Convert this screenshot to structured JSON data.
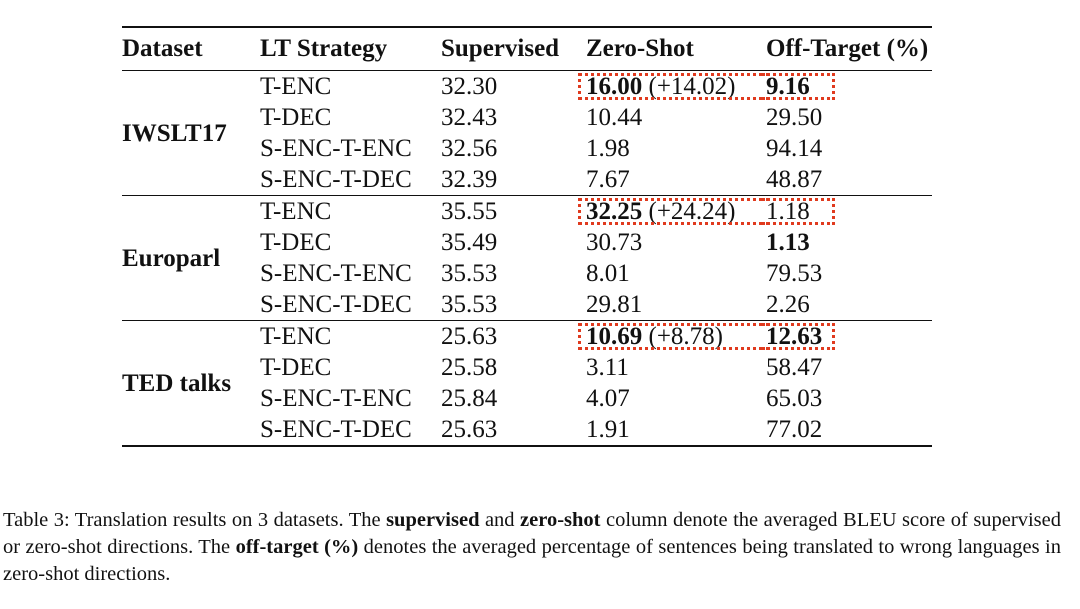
{
  "table": {
    "headers": {
      "dataset": "Dataset",
      "strategy": "LT Strategy",
      "supervised": "Supervised",
      "zero_shot": "Zero-Shot",
      "off_target": "Off-Target (%)"
    },
    "groups": [
      {
        "dataset": "IWSLT17",
        "rows": [
          {
            "strategy": "T-ENC",
            "supervised": "32.30",
            "zero_shot": "16.00",
            "zero_shot_delta": "(+14.02)",
            "off_target": "9.16"
          },
          {
            "strategy": "T-DEC",
            "supervised": "32.43",
            "zero_shot": "10.44",
            "off_target": "29.50"
          },
          {
            "strategy": "S-ENC-T-ENC",
            "supervised": "32.56",
            "zero_shot": "1.98",
            "off_target": "94.14"
          },
          {
            "strategy": "S-ENC-T-DEC",
            "supervised": "32.39",
            "zero_shot": "7.67",
            "off_target": "48.87"
          }
        ]
      },
      {
        "dataset": "Europarl",
        "rows": [
          {
            "strategy": "T-ENC",
            "supervised": "35.55",
            "zero_shot": "32.25",
            "zero_shot_delta": "(+24.24)",
            "off_target": "1.18"
          },
          {
            "strategy": "T-DEC",
            "supervised": "35.49",
            "zero_shot": "30.73",
            "off_target": "1.13"
          },
          {
            "strategy": "S-ENC-T-ENC",
            "supervised": "35.53",
            "zero_shot": "8.01",
            "off_target": "79.53"
          },
          {
            "strategy": "S-ENC-T-DEC",
            "supervised": "35.53",
            "zero_shot": "29.81",
            "off_target": "2.26"
          }
        ]
      },
      {
        "dataset": "TED talks",
        "rows": [
          {
            "strategy": "T-ENC",
            "supervised": "25.63",
            "zero_shot": "10.69",
            "zero_shot_delta": "(+8.78)",
            "off_target": "12.63"
          },
          {
            "strategy": "T-DEC",
            "supervised": "25.58",
            "zero_shot": "3.11",
            "off_target": "58.47"
          },
          {
            "strategy": "S-ENC-T-ENC",
            "supervised": "25.84",
            "zero_shot": "4.07",
            "off_target": "65.03"
          },
          {
            "strategy": "S-ENC-T-DEC",
            "supervised": "25.63",
            "zero_shot": "1.91",
            "off_target": "77.02"
          }
        ]
      }
    ],
    "highlight_color": "#e03a1e"
  },
  "caption": {
    "part1": "Table 3: Translation results on 3 datasets. The ",
    "supervised": "supervised",
    "part2": " and ",
    "zero_shot": "zero-shot",
    "part3": " column denote the averaged BLEU score of supervised or zero-shot directions.  The ",
    "off_target": "off-target (%)",
    "part4": " denotes the averaged percentage of sentences being translated to wrong languages in zero-shot directions."
  }
}
